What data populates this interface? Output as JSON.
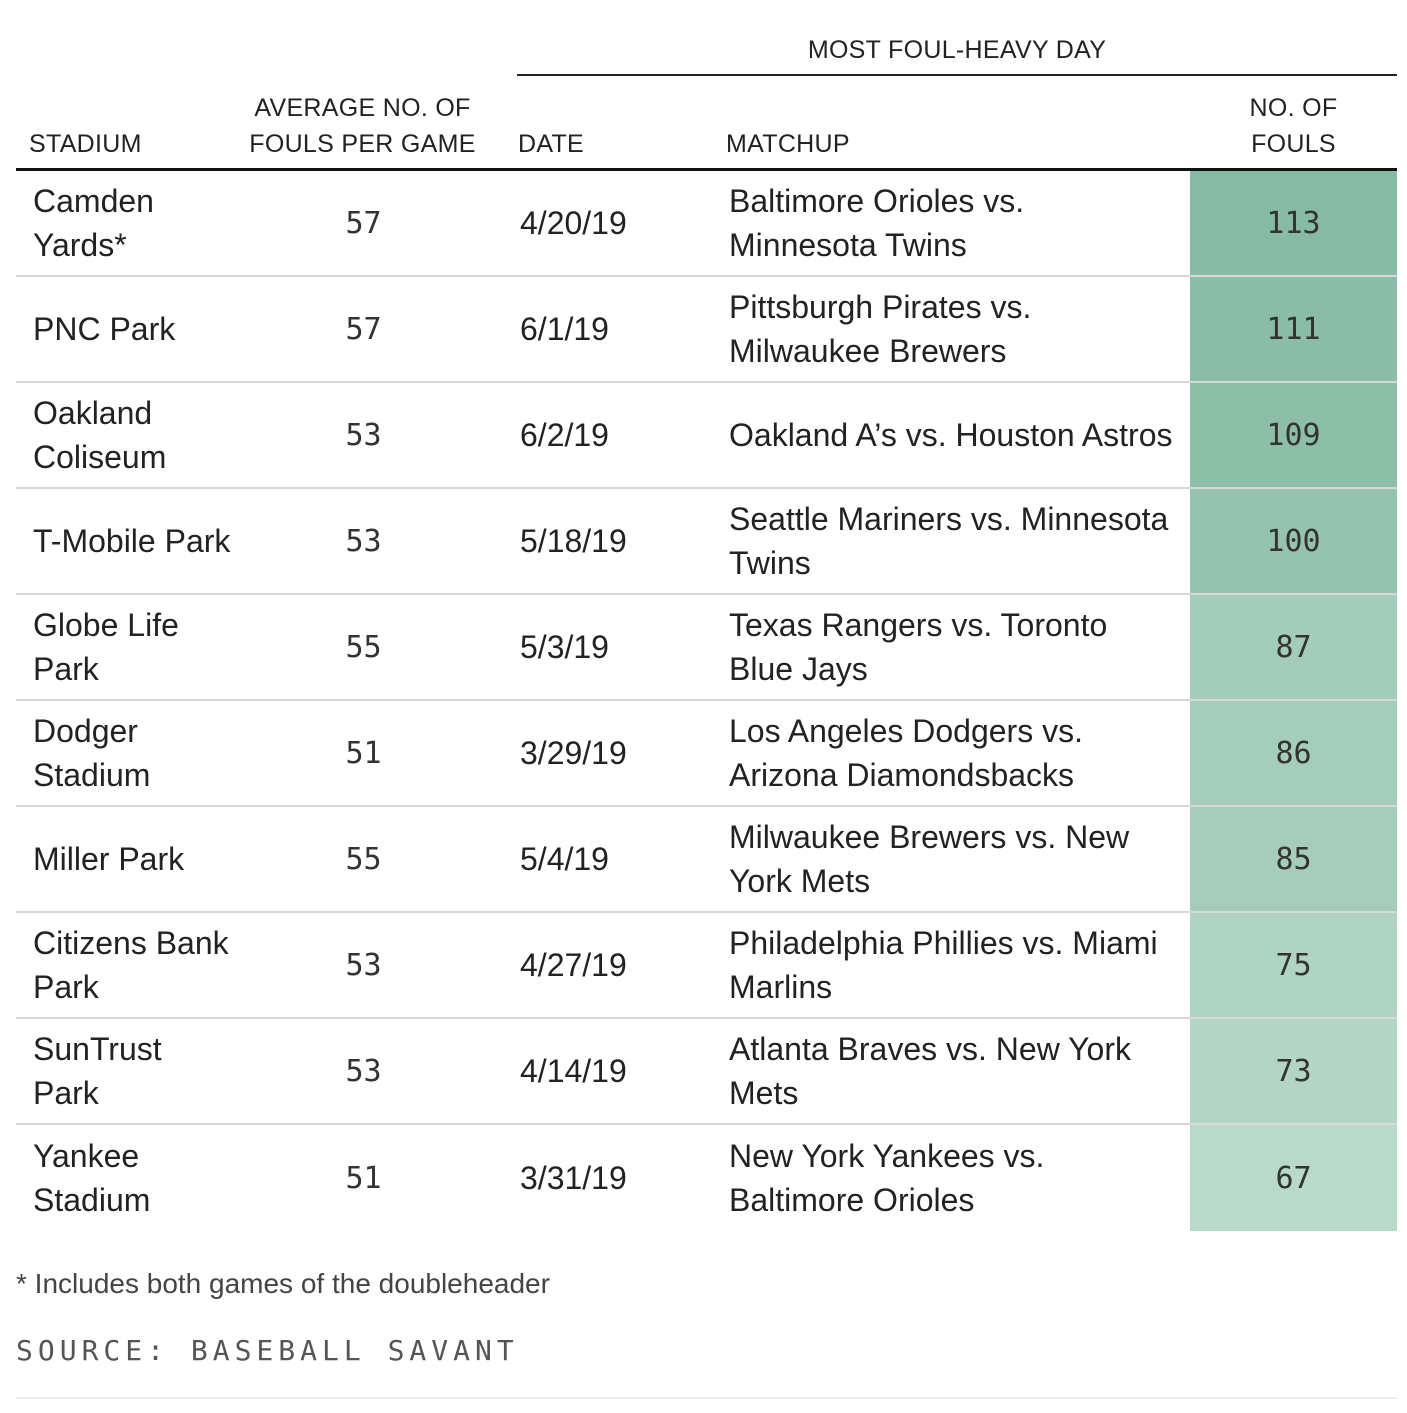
{
  "header": {
    "group_label": "MOST FOUL-HEAVY DAY",
    "columns": {
      "stadium": "STADIUM",
      "average_line1": "AVERAGE NO. OF",
      "average_line2": "FOULS PER GAME",
      "date": "DATE",
      "matchup": "MATCHUP",
      "fouls_line1": "NO. OF",
      "fouls_line2": "FOULS"
    }
  },
  "colors": {
    "scale_low": "#b9d9cb",
    "scale_high": "#88bba5",
    "text": "#222222",
    "row_rule": "#d8d8d8"
  },
  "chart_data": {
    "type": "table",
    "columns": [
      "STADIUM",
      "AVERAGE NO. OF FOULS PER GAME",
      "DATE",
      "MATCHUP",
      "NO. OF FOULS"
    ],
    "rows": [
      {
        "stadium": "Camden Yards*",
        "average": 57,
        "date": "4/20/19",
        "matchup": "Baltimore Orioles vs. Minnesota Twins",
        "fouls": 113
      },
      {
        "stadium": "PNC Park",
        "average": 57,
        "date": "6/1/19",
        "matchup": "Pittsburgh Pirates vs. Milwaukee Brewers",
        "fouls": 111
      },
      {
        "stadium": "Oakland Coliseum",
        "average": 53,
        "date": "6/2/19",
        "matchup": "Oakland A’s vs. Houston Astros",
        "fouls": 109
      },
      {
        "stadium": "T-Mobile Park",
        "average": 53,
        "date": "5/18/19",
        "matchup": "Seattle Mariners vs. Minnesota Twins",
        "fouls": 100
      },
      {
        "stadium": "Globe Life Park",
        "average": 55,
        "date": "5/3/19",
        "matchup": "Texas Rangers vs. Toronto Blue Jays",
        "fouls": 87
      },
      {
        "stadium": "Dodger Stadium",
        "average": 51,
        "date": "3/29/19",
        "matchup": "Los Angeles Dodgers vs. Arizona Diamondsbacks",
        "fouls": 86
      },
      {
        "stadium": "Miller Park",
        "average": 55,
        "date": "5/4/19",
        "matchup": "Milwaukee Brewers vs. New York Mets",
        "fouls": 85
      },
      {
        "stadium": "Citizens Bank Park",
        "average": 53,
        "date": "4/27/19",
        "matchup": "Philadelphia Phillies vs. Miami Marlins",
        "fouls": 75
      },
      {
        "stadium": "SunTrust Park",
        "average": 53,
        "date": "4/14/19",
        "matchup": "Atlanta Braves vs. New York Mets",
        "fouls": 73
      },
      {
        "stadium": "Yankee Stadium",
        "average": 51,
        "date": "3/31/19",
        "matchup": "New York Yankees vs. Baltimore Orioles",
        "fouls": 67
      }
    ]
  },
  "footnote": "* Includes both games of the doubleheader",
  "source": "SOURCE: BASEBALL SAVANT"
}
